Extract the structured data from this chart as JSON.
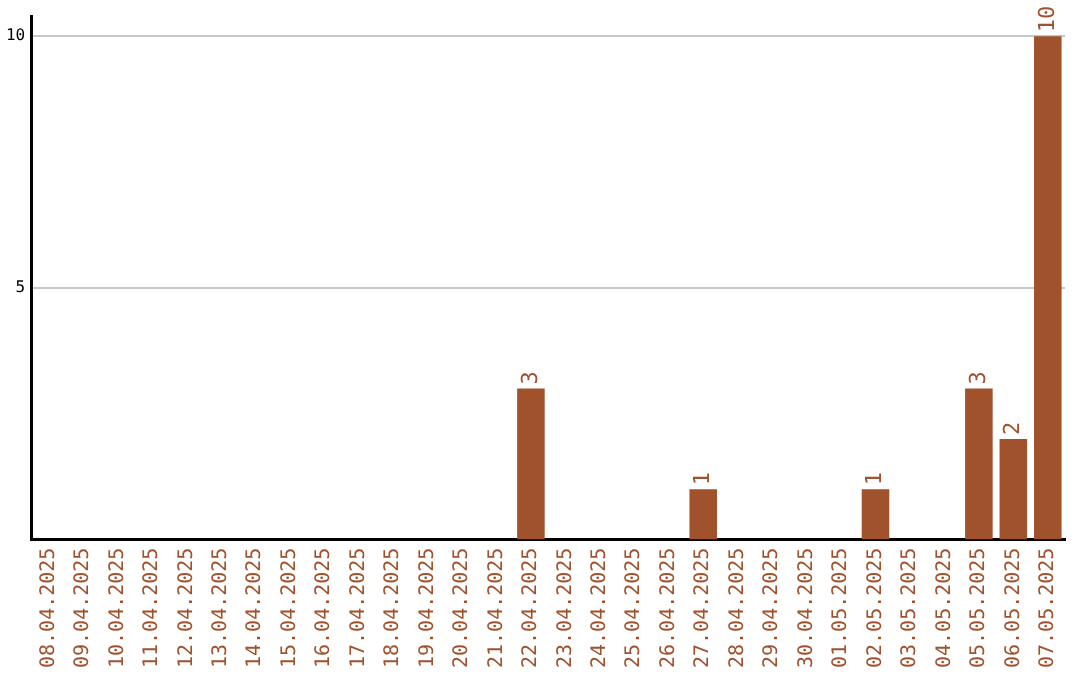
{
  "chart_data": {
    "type": "bar",
    "categories": [
      "08.04.2025",
      "09.04.2025",
      "10.04.2025",
      "11.04.2025",
      "12.04.2025",
      "13.04.2025",
      "14.04.2025",
      "15.04.2025",
      "16.04.2025",
      "17.04.2025",
      "18.04.2025",
      "19.04.2025",
      "20.04.2025",
      "21.04.2025",
      "22.04.2025",
      "23.04.2025",
      "24.04.2025",
      "25.04.2025",
      "26.04.2025",
      "27.04.2025",
      "28.04.2025",
      "29.04.2025",
      "30.04.2025",
      "01.05.2025",
      "02.05.2025",
      "03.05.2025",
      "04.05.2025",
      "05.05.2025",
      "06.05.2025",
      "07.05.2025"
    ],
    "values": [
      0,
      0,
      0,
      0,
      0,
      0,
      0,
      0,
      0,
      0,
      0,
      0,
      0,
      0,
      3,
      0,
      0,
      0,
      0,
      1,
      0,
      0,
      0,
      0,
      1,
      0,
      0,
      3,
      2,
      10
    ],
    "value_labels": [
      null,
      null,
      null,
      null,
      null,
      null,
      null,
      null,
      null,
      null,
      null,
      null,
      null,
      null,
      "3",
      null,
      null,
      null,
      null,
      "1",
      null,
      null,
      null,
      null,
      "1",
      null,
      null,
      "3",
      "2",
      "10"
    ],
    "color": "#a0522d",
    "ylim": [
      0,
      10.4
    ],
    "yticks": [
      5,
      10
    ],
    "grid": "y",
    "legend": false
  }
}
